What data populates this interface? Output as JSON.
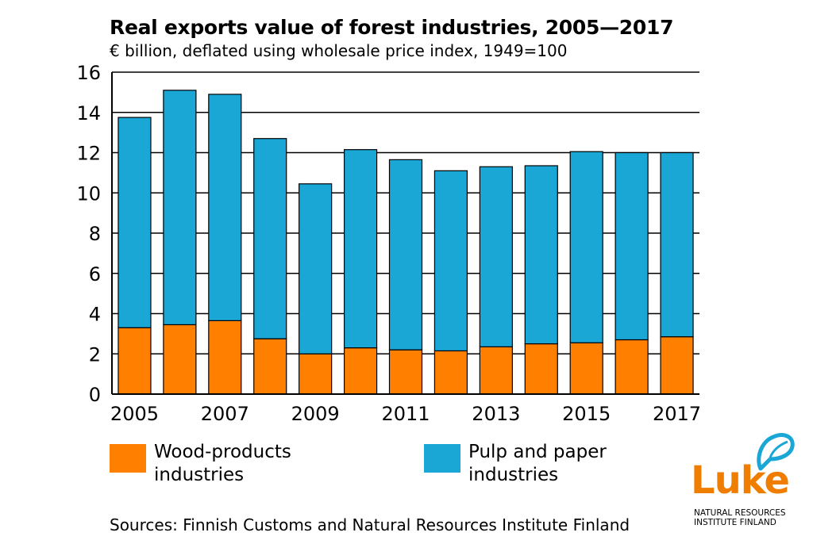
{
  "title": "Real exports value of forest industries, 2005—2017",
  "subtitle": "€ billion, deflated using wholesale price index, 1949=100",
  "colors": {
    "wood": "#ff8000",
    "pulp": "#1aa7d6",
    "logo_orange": "#ef7d00",
    "logo_blue": "#1aa7d6"
  },
  "chart_data": {
    "type": "bar",
    "stacked": true,
    "title": "Real exports value of forest industries, 2005—2017",
    "ylabel": "€ billion",
    "ylim": [
      0,
      16
    ],
    "yticks": [
      "0",
      "2",
      "4",
      "6",
      "8",
      "10",
      "12",
      "14",
      "16"
    ],
    "categories": [
      "2005",
      "2006",
      "2007",
      "2008",
      "2009",
      "2010",
      "2011",
      "2012",
      "2013",
      "2014",
      "2015",
      "2016",
      "2017"
    ],
    "xtick_labels": [
      "2005",
      "",
      "2007",
      "",
      "2009",
      "",
      "2011",
      "",
      "2013",
      "",
      "2015",
      "",
      "2017"
    ],
    "series": [
      {
        "name": "Wood-products industries",
        "color": "#ff8000",
        "values": [
          3.3,
          3.45,
          3.65,
          2.75,
          2.0,
          2.3,
          2.2,
          2.15,
          2.35,
          2.5,
          2.55,
          2.7,
          2.85
        ]
      },
      {
        "name": "Pulp and paper industries",
        "color": "#1aa7d6",
        "values": [
          10.45,
          11.65,
          11.25,
          9.95,
          8.45,
          9.85,
          9.45,
          8.95,
          8.95,
          8.85,
          9.5,
          9.3,
          9.15
        ]
      }
    ],
    "totals": [
      13.75,
      15.1,
      14.9,
      12.7,
      10.45,
      12.15,
      11.65,
      11.1,
      11.3,
      11.35,
      12.05,
      12.0,
      12.0
    ]
  },
  "legend": {
    "wood_label": "Wood-products industries",
    "pulp_label": "Pulp and paper industries"
  },
  "source": "Sources: Finnish Customs and Natural Resources Institute Finland",
  "logo": {
    "word": "Luke",
    "line1": "NATURAL RESOURCES",
    "line2": "INSTITUTE FINLAND"
  }
}
